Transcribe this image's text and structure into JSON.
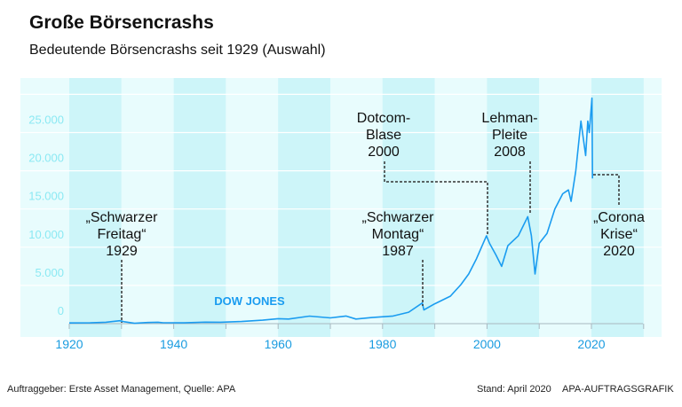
{
  "header": {
    "title": "Große Börsencrashs",
    "subtitle": "Bedeutende Börsencrashs seit 1929 (Auswahl)"
  },
  "footer": {
    "left": "Auftraggeber: Erste Asset Management, Quelle: APA",
    "stand": "Stand: April 2020",
    "right": "APA-AUFTRAGSGRAFIK"
  },
  "colors": {
    "line": "#1a9cf0",
    "band_dark": "#cdf5f9",
    "band_light": "#e8fcfd",
    "ytick": "#8be9f3",
    "xtick": "#1a9ce0"
  },
  "chart_data": {
    "type": "line",
    "title": "Große Börsencrashs",
    "series_label": "DOW JONES",
    "xlim": [
      1920,
      2030
    ],
    "ylim": [
      0,
      30000
    ],
    "x_ticks": [
      1920,
      1940,
      1960,
      1980,
      2000,
      2020
    ],
    "x_tick_labels": [
      "1920",
      "1940",
      "1960",
      "1980",
      "2000",
      "2020"
    ],
    "y_ticks": [
      0,
      5000,
      10000,
      15000,
      20000,
      25000
    ],
    "y_tick_labels": [
      "0",
      "5.000",
      "10.000",
      "15.000",
      "20.000",
      "25.000"
    ],
    "series": [
      {
        "name": "Dow Jones",
        "x": [
          1920,
          1924,
          1927,
          1929.7,
          1930.5,
          1932.5,
          1935,
          1937,
          1938,
          1942,
          1946,
          1949,
          1953,
          1957,
          1960,
          1962,
          1966,
          1970,
          1973,
          1974.9,
          1978,
          1982,
          1985,
          1987.6,
          1987.9,
          1990,
          1993,
          1995,
          1996.5,
          1998,
          1999.9,
          2000.5,
          2001.7,
          2002.8,
          2004,
          2006,
          2007.8,
          2008.5,
          2009.2,
          2010,
          2011.5,
          2013,
          2014.5,
          2015.6,
          2016.1,
          2017,
          2018,
          2018.9,
          2019.3,
          2019.6,
          2020.1,
          2020.2
        ],
        "y": [
          90,
          100,
          180,
          380,
          250,
          50,
          150,
          190,
          120,
          100,
          200,
          180,
          280,
          450,
          650,
          600,
          990,
          750,
          1000,
          600,
          800,
          1000,
          1500,
          2700,
          1800,
          2600,
          3600,
          5100,
          6500,
          8500,
          11500,
          10500,
          9000,
          7500,
          10200,
          11500,
          14000,
          11500,
          6500,
          10500,
          11800,
          15000,
          17000,
          17500,
          16000,
          20000,
          26500,
          22000,
          26500,
          25000,
          29500,
          19000
        ]
      }
    ],
    "annotations": [
      {
        "lines": [
          "„Schwarzer",
          "Freitag“",
          "1929"
        ],
        "x": 1929
      },
      {
        "lines": [
          "„Schwarzer",
          "Montag“",
          "1987"
        ],
        "x": 1987
      },
      {
        "lines": [
          "Dotcom-",
          "Blase",
          "2000"
        ],
        "x": 2000
      },
      {
        "lines": [
          "Lehman-",
          "Pleite",
          "2008"
        ],
        "x": 2008
      },
      {
        "lines": [
          "„Corona",
          "Krise“",
          "2020"
        ],
        "x": 2020
      }
    ]
  }
}
